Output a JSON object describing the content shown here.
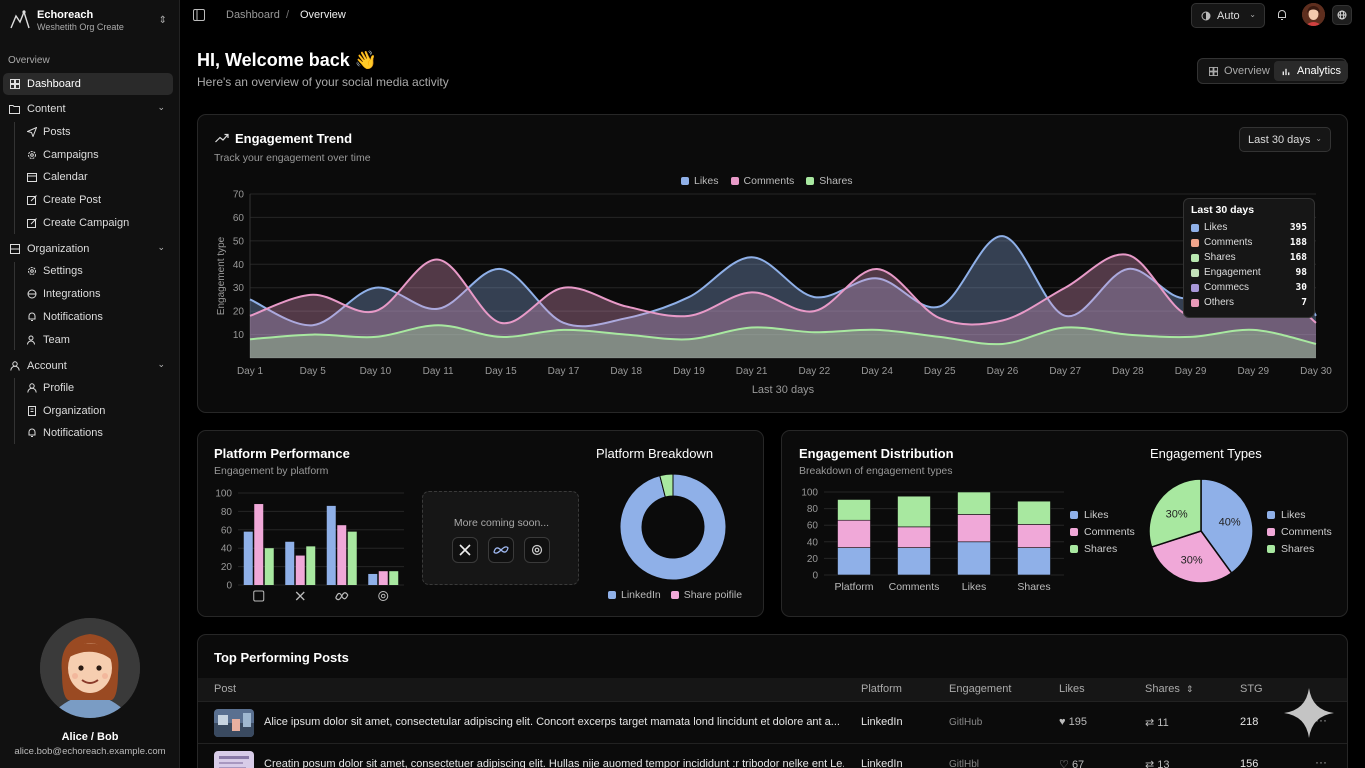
{
  "sidebar": {
    "brand": {
      "name": "Echoreach",
      "subtitle": "Weshetith Org Create"
    },
    "group_label": "Overview",
    "dashboard": "Dashboard",
    "content": {
      "label": "Content",
      "items": [
        "Posts",
        "Campaigns",
        "Calendar",
        "Create Post",
        "Create Campaign"
      ]
    },
    "organization": {
      "label": "Organization",
      "items": [
        "Settings",
        "Integrations",
        "Notifications",
        "Team"
      ]
    },
    "account": {
      "label": "Account",
      "items": [
        "Profile",
        "Organization",
        "Notifications"
      ]
    },
    "user": {
      "name": "Alice / Bob",
      "email": "alice.bob@echoreach.example.com"
    }
  },
  "topbar": {
    "breadcrumb": [
      "Dashboard",
      "Overview"
    ],
    "theme": "Auto"
  },
  "header": {
    "welcome": "HI, Welcome back 👋",
    "subtitle": "Here's an overview of your social media activity",
    "tabs": [
      "Overview",
      "Analytics"
    ],
    "active_tab": "Analytics"
  },
  "trend": {
    "title": "Engagement Trend",
    "subtitle": "Track your engagement over time",
    "range": "Last 30 days",
    "tooltip": {
      "title": "Last 30 days",
      "rows": [
        {
          "label": "Likes",
          "value": "395",
          "color": "#8fb0e8"
        },
        {
          "label": "Comments",
          "value": "188",
          "color": "#f0a58c"
        },
        {
          "label": "Shares",
          "value": "168",
          "color": "#b8e8b0"
        },
        {
          "label": "Engagement",
          "value": "98",
          "color": "#c2e0b8"
        },
        {
          "label": "Commecs",
          "value": "30",
          "color": "#a898d8"
        },
        {
          "label": "Others",
          "value": "7",
          "color": "#e89ab8"
        }
      ]
    }
  },
  "perf": {
    "title": "Platform Performance",
    "subtitle": "Engagement by platform",
    "breakdown_title": "Platform Breakdown",
    "coming_soon": "More coming soon..."
  },
  "dist": {
    "title": "Engagement Distribution",
    "subtitle": "Breakdown of engagement types",
    "types_title": "Engagement Types"
  },
  "posts": {
    "title": "Top Performing Posts",
    "columns": [
      "Post",
      "Platform",
      "Engagement",
      "Likes",
      "Shares",
      "STG"
    ],
    "rows": [
      {
        "text": "Alice ipsum dolor sit amet, consectetular adipiscing elit. Concort excerps target mamata lond lincidunt et dolore ant a...",
        "platform": "LinkedIn",
        "engagement": "GitlHub",
        "likes": "195",
        "shares": "11",
        "stg": "218"
      },
      {
        "text": "Creatin posum dolor sit amet, consectetuer adipiscing elit. Hullas nije auomed tempor incididunt :r tribodor nelke ent Le...",
        "platform": "LinkedIn",
        "engagement": "GitlHbl",
        "likes": "67",
        "shares": "13",
        "stg": "156"
      }
    ]
  },
  "chart_data": [
    {
      "type": "area",
      "title": "Engagement Trend",
      "xlabel": "Last 30 days",
      "ylabel": "Engagement type",
      "ylim": [
        0,
        70
      ],
      "yticks": [
        10,
        20,
        30,
        40,
        50,
        60,
        70
      ],
      "legend": "top",
      "categories": [
        "Day 1",
        "Day 5",
        "Day 10",
        "Day 11",
        "Day 15",
        "Day 17",
        "Day 18",
        "Day 19",
        "Day 21",
        "Day 22",
        "Day 24",
        "Day 25",
        "Day 26",
        "Day 27",
        "Day 28",
        "Day 29",
        "Day 29",
        "Day 30"
      ],
      "series": [
        {
          "name": "Likes",
          "color": "#8fb0e8",
          "values": [
            25,
            14,
            30,
            21,
            38,
            15,
            17,
            26,
            43,
            26,
            34,
            22,
            52,
            18,
            38,
            26,
            60,
            18
          ]
        },
        {
          "name": "Comments",
          "color": "#e89ac8",
          "values": [
            18,
            27,
            20,
            42,
            15,
            30,
            22,
            18,
            28,
            20,
            38,
            17,
            16,
            30,
            44,
            18,
            36,
            15
          ]
        },
        {
          "name": "Shares",
          "color": "#a8e8a0",
          "values": [
            8,
            10,
            9,
            14,
            9,
            12,
            10,
            8,
            13,
            11,
            12,
            9,
            6,
            13,
            10,
            9,
            12,
            6
          ]
        }
      ]
    },
    {
      "type": "bar",
      "title": "Platform Performance",
      "ylim": [
        0,
        100
      ],
      "yticks": [
        0,
        20,
        40,
        60,
        80,
        100
      ],
      "categories": [
        "LinkedIn",
        "X",
        "Meta",
        "Threads"
      ],
      "series": [
        {
          "color": "#8fb0e8",
          "values": [
            58,
            47,
            86,
            12
          ]
        },
        {
          "color": "#f0a8d8",
          "values": [
            88,
            32,
            65,
            15
          ]
        },
        {
          "color": "#a8e8a0",
          "values": [
            40,
            42,
            58,
            15
          ]
        }
      ]
    },
    {
      "type": "pie",
      "title": "Platform Breakdown",
      "donut": true,
      "labels": [
        "LinkedIn",
        "Share poifile"
      ],
      "values": [
        96,
        4
      ],
      "colors": [
        "#8fb0e8",
        "#a8e8a0"
      ],
      "legend_colors": [
        "#8fb0e8",
        "#f0a8d8"
      ]
    },
    {
      "type": "bar",
      "stacked": true,
      "title": "Engagement Distribution",
      "ylim": [
        0,
        100
      ],
      "yticks": [
        0,
        20,
        40,
        60,
        80,
        100
      ],
      "categories": [
        "Platform",
        "Comments",
        "Likes",
        "Shares"
      ],
      "series": [
        {
          "name": "Likes",
          "color": "#8fb0e8",
          "values": [
            33,
            33,
            40,
            33
          ]
        },
        {
          "name": "Comments",
          "color": "#f0a8d8",
          "values": [
            33,
            25,
            33,
            28
          ]
        },
        {
          "name": "Shares",
          "color": "#a8e8a0",
          "values": [
            25,
            37,
            27,
            28
          ]
        }
      ]
    },
    {
      "type": "pie",
      "title": "Engagement Types",
      "labels": [
        "Likes",
        "Comments",
        "Shares"
      ],
      "values": [
        40,
        30,
        30
      ],
      "data_labels": [
        "40%",
        "30%",
        "30%"
      ],
      "colors": [
        "#8fb0e8",
        "#f0a8d8",
        "#a8e8a0"
      ]
    }
  ]
}
